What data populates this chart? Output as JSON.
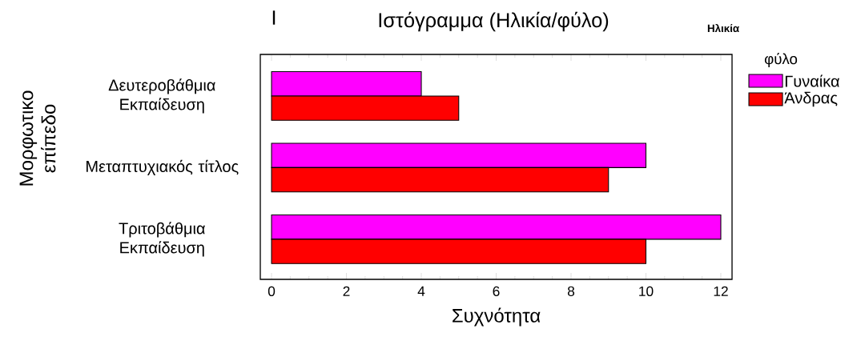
{
  "chart_data": {
    "type": "bar",
    "orientation": "horizontal",
    "title": "Ιστόγραμμα (Ηλικία/φύλο)",
    "xlabel": "Συχνότητα",
    "ylabel": "Μορφωτικο επίπεδο",
    "legend_title": "φύλο",
    "annotations": [
      "I",
      "Ηλικία"
    ],
    "categories": [
      "Δευτεροβάθμια Εκπαίδευση",
      "Μεταπτυχιακός τίτλος",
      "Τριτοβάθμια Εκπαίδευση"
    ],
    "series": [
      {
        "name": "Γυναίκα",
        "color": "#ff00ff",
        "values": [
          4,
          10,
          12
        ]
      },
      {
        "name": "Άνδρας",
        "color": "#ff0000",
        "values": [
          5,
          9,
          10
        ]
      }
    ],
    "xlim": [
      -0.3,
      12.3
    ],
    "xticks": [
      0,
      2,
      4,
      6,
      8,
      10,
      12
    ],
    "grid": false,
    "legend": "top right"
  }
}
